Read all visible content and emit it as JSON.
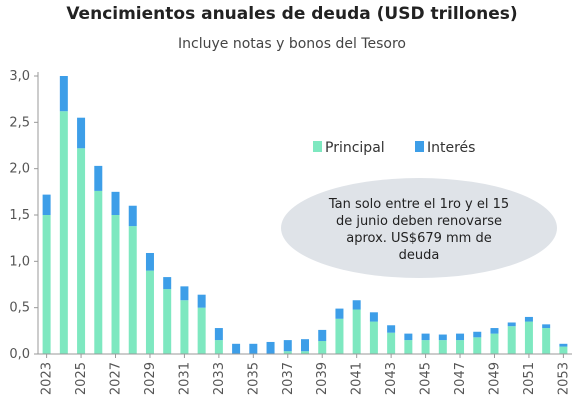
{
  "title": "Vencimientos anuales de deuda (USD trillones)",
  "subtitle": "Incluye notas y bonos del Tesoro",
  "annotation": {
    "lines": [
      "Tan solo entre el 1ro y el 15",
      "de junio deben renovarse",
      "aprox. US$679 mm de",
      "deuda"
    ]
  },
  "colors": {
    "principal": "#7ee8c0",
    "interes": "#3d9ee8",
    "note_fill": "#dfe3e8",
    "axis": "#999999"
  },
  "chart_data": {
    "type": "bar",
    "stacked": true,
    "title": "Vencimientos anuales de deuda (USD trillones)",
    "subtitle": "Incluye notas y bonos del Tesoro",
    "x": [
      2023,
      2024,
      2025,
      2026,
      2027,
      2028,
      2029,
      2030,
      2031,
      2032,
      2033,
      2034,
      2035,
      2036,
      2037,
      2038,
      2039,
      2040,
      2041,
      2042,
      2043,
      2044,
      2045,
      2046,
      2047,
      2048,
      2049,
      2050,
      2051,
      2052,
      2053
    ],
    "x_tick_labels": [
      "2023",
      "2025",
      "2027",
      "2029",
      "2031",
      "2033",
      "2035",
      "2037",
      "2039",
      "2041",
      "2043",
      "2045",
      "2047",
      "2049",
      "2051",
      "2053"
    ],
    "y_ticks": [
      "0,0",
      "0,5",
      "1,0",
      "1,5",
      "2,0",
      "2,5",
      "3,0"
    ],
    "ylim": [
      0,
      3.0
    ],
    "series": [
      {
        "name": "Principal",
        "values": [
          1.5,
          2.62,
          2.22,
          1.76,
          1.5,
          1.38,
          0.9,
          0.7,
          0.58,
          0.5,
          0.15,
          0.0,
          0.0,
          0.0,
          0.03,
          0.03,
          0.14,
          0.38,
          0.48,
          0.35,
          0.23,
          0.15,
          0.15,
          0.15,
          0.15,
          0.18,
          0.22,
          0.3,
          0.35,
          0.28,
          0.08
        ]
      },
      {
        "name": "Interés",
        "values": [
          0.22,
          0.38,
          0.33,
          0.27,
          0.25,
          0.22,
          0.19,
          0.13,
          0.15,
          0.14,
          0.13,
          0.11,
          0.11,
          0.13,
          0.12,
          0.13,
          0.12,
          0.11,
          0.1,
          0.1,
          0.08,
          0.07,
          0.07,
          0.06,
          0.07,
          0.06,
          0.06,
          0.04,
          0.05,
          0.04,
          0.03
        ]
      }
    ],
    "legend_position": "top-right",
    "grid": false
  }
}
